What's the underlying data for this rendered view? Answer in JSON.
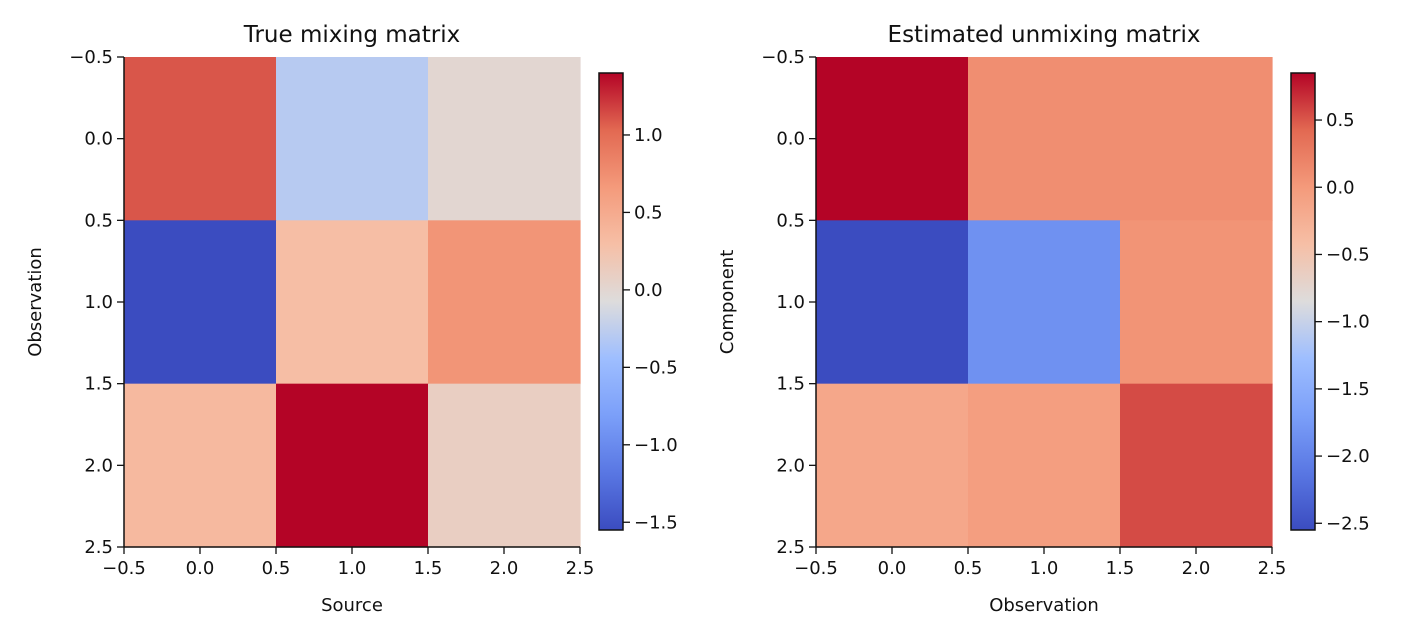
{
  "chart_data": [
    {
      "type": "heatmap",
      "title": "True mixing matrix",
      "xlabel": "Source",
      "ylabel": "Observation",
      "xlim": [
        -0.5,
        2.5
      ],
      "ylim": [
        2.5,
        -0.5
      ],
      "x_ticks": [
        "−0.5",
        "0.0",
        "0.5",
        "1.0",
        "1.5",
        "2.0",
        "2.5"
      ],
      "y_ticks": [
        "−0.5",
        "0.0",
        "0.5",
        "1.0",
        "1.5",
        "2.0",
        "2.5"
      ],
      "values": [
        [
          1.1,
          -0.3,
          0.0
        ],
        [
          -1.55,
          0.3,
          0.7
        ],
        [
          0.35,
          1.4,
          0.1
        ]
      ],
      "colormap": "coolwarm",
      "colorbar": {
        "range": [
          -1.55,
          1.4
        ],
        "ticks": [
          -1.5,
          -1.0,
          -0.5,
          0.0,
          0.5,
          1.0
        ],
        "tick_labels": [
          "−1.5",
          "−1.0",
          "−0.5",
          "0.0",
          "0.5",
          "1.0"
        ]
      }
    },
    {
      "type": "heatmap",
      "title": "Estimated unmixing matrix",
      "xlabel": "Observation",
      "ylabel": "Component",
      "xlim": [
        -0.5,
        2.5
      ],
      "ylim": [
        2.5,
        -0.5
      ],
      "x_ticks": [
        "−0.5",
        "0.0",
        "0.5",
        "1.0",
        "1.5",
        "2.0",
        "2.5"
      ],
      "y_ticks": [
        "−0.5",
        "0.0",
        "0.5",
        "1.0",
        "1.5",
        "2.0",
        "2.5"
      ],
      "values": [
        [
          0.85,
          0.1,
          0.1
        ],
        [
          -2.55,
          -1.85,
          0.05
        ],
        [
          -0.15,
          -0.05,
          0.55
        ]
      ],
      "colormap": "coolwarm",
      "colorbar": {
        "range": [
          -2.55,
          0.85
        ],
        "ticks": [
          -2.5,
          -2.0,
          -1.5,
          -1.0,
          -0.5,
          0.0,
          0.5
        ],
        "tick_labels": [
          "−2.5",
          "−2.0",
          "−1.5",
          "−1.0",
          "−0.5",
          "0.0",
          "0.5"
        ]
      }
    }
  ]
}
